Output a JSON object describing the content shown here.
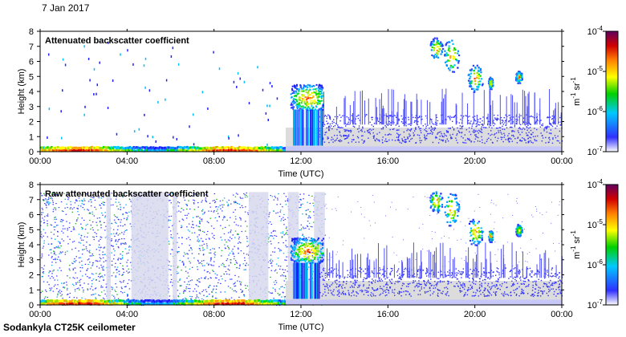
{
  "date_label": "7 Jan 2017",
  "footer_label": "Sodankyla CT25K ceilometer",
  "colors": {
    "scale": [
      "#ffffff",
      "#2020ff",
      "#00c0ff",
      "#00e000",
      "#ffff00",
      "#ff8000",
      "#d00000",
      "#600060"
    ],
    "noise": "#dcdcdc"
  },
  "chart_data": [
    {
      "type": "heatmap",
      "title": "Attenuated backscatter coefficient",
      "xlabel": "Time (UTC)",
      "ylabel": "Height (km)",
      "x_ticks": [
        "00:00",
        "04:00",
        "08:00",
        "12:00",
        "16:00",
        "20:00",
        "00:00"
      ],
      "x_range_hours": [
        0,
        24
      ],
      "y_ticks": [
        "0",
        "1",
        "2",
        "3",
        "4",
        "5",
        "6",
        "7",
        "8"
      ],
      "ylim": [
        0,
        8
      ],
      "colorbar": {
        "label_base": "m",
        "exp1": "-1",
        "label_mid": " sr",
        "exp2": "-1",
        "ticks": [
          {
            "base": "10",
            "exp": "-4"
          },
          {
            "base": "10",
            "exp": "-5"
          },
          {
            "base": "10",
            "exp": "-6"
          },
          {
            "base": "10",
            "exp": "-7"
          }
        ],
        "range_log10": [
          -7,
          -4
        ]
      },
      "features": [
        {
          "name": "surface layer",
          "t": [
            0,
            11.3
          ],
          "h": [
            0,
            0.35
          ],
          "log10": -5.3
        },
        {
          "name": "low cloud",
          "t": [
            11.4,
            13.0
          ],
          "h": [
            2.8,
            4.5
          ],
          "log10": -4.6
        },
        {
          "name": "high cloud",
          "t": [
            18.0,
            22.2
          ],
          "h": [
            4.5,
            7.5
          ],
          "log10": -4.8
        },
        {
          "name": "thin layer",
          "t": [
            11.3,
            24
          ],
          "h": [
            0.5,
            2.5
          ],
          "log10": -6.3
        }
      ]
    },
    {
      "type": "heatmap",
      "title": "Raw attenuated backscatter coefficient",
      "xlabel": "Time (UTC)",
      "ylabel": "Height (km)",
      "x_ticks": [
        "00:00",
        "04:00",
        "08:00",
        "12:00",
        "16:00",
        "20:00",
        "00:00"
      ],
      "x_range_hours": [
        0,
        24
      ],
      "y_ticks": [
        "0",
        "1",
        "2",
        "3",
        "4",
        "5",
        "6",
        "7",
        "8"
      ],
      "ylim": [
        0,
        8
      ],
      "colorbar": {
        "label_base": "m",
        "exp1": "-1",
        "label_mid": " sr",
        "exp2": "-1",
        "ticks": [
          {
            "base": "10",
            "exp": "-4"
          },
          {
            "base": "10",
            "exp": "-5"
          },
          {
            "base": "10",
            "exp": "-6"
          },
          {
            "base": "10",
            "exp": "-7"
          }
        ],
        "range_log10": [
          -7,
          -4
        ]
      },
      "features": [
        {
          "name": "noise",
          "t": [
            0,
            13.1
          ],
          "h": [
            0,
            7.5
          ],
          "log10": -6.5
        },
        {
          "name": "surface layer",
          "t": [
            0,
            11.3
          ],
          "h": [
            0,
            0.35
          ],
          "log10": -5.3
        },
        {
          "name": "low cloud",
          "t": [
            11.4,
            13.0
          ],
          "h": [
            2.8,
            4.5
          ],
          "log10": -4.6
        },
        {
          "name": "high cloud",
          "t": [
            18.0,
            22.2
          ],
          "h": [
            4.5,
            7.5
          ],
          "log10": -4.8
        }
      ]
    }
  ]
}
